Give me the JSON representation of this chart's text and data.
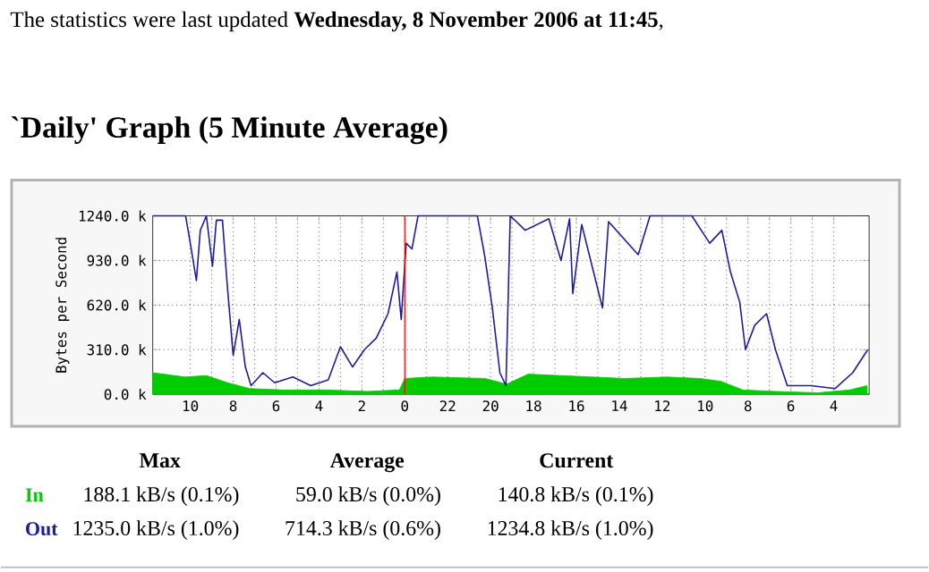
{
  "chart_data": {
    "type": "line",
    "title": "`Daily' Graph (5 Minute Average)",
    "subtitle": "The statistics were last updated **Wednesday, 8 November 2006 at 11:45**,",
    "ylabel": "Bytes per Second",
    "xlim": [
      "2006-11-08T11:45",
      "2006-11-07T02:21"
    ],
    "xticks": [
      {
        "value": "2006-11-08T10:00",
        "label": "10"
      },
      {
        "value": "2006-11-08T08:00",
        "label": "8"
      },
      {
        "value": "2006-11-08T06:00",
        "label": "6"
      },
      {
        "value": "2006-11-08T04:00",
        "label": "4"
      },
      {
        "value": "2006-11-08T02:00",
        "label": "2"
      },
      {
        "value": "2006-11-08T00:00",
        "label": "0"
      },
      {
        "value": "2006-11-07T22:00",
        "label": "22"
      },
      {
        "value": "2006-11-07T20:00",
        "label": "20"
      },
      {
        "value": "2006-11-07T18:00",
        "label": "18"
      },
      {
        "value": "2006-11-07T16:00",
        "label": "16"
      },
      {
        "value": "2006-11-07T14:00",
        "label": "14"
      },
      {
        "value": "2006-11-07T12:00",
        "label": "12"
      },
      {
        "value": "2006-11-07T10:00",
        "label": "10"
      },
      {
        "value": "2006-11-07T08:00",
        "label": "8"
      },
      {
        "value": "2006-11-07T06:00",
        "label": "6"
      },
      {
        "value": "2006-11-07T04:00",
        "label": "4"
      }
    ],
    "ylim": [
      0,
      1240
    ],
    "yticks": [
      {
        "value": 0,
        "label": "0.0 k"
      },
      {
        "value": 310,
        "label": "310.0 k"
      },
      {
        "value": 620,
        "label": "620.0 k"
      },
      {
        "value": 930,
        "label": "930.0 k"
      },
      {
        "value": 1240,
        "label": "1240.0 k"
      }
    ],
    "grid": true,
    "series": [
      {
        "name": "In",
        "type": "area",
        "color": "#00cc00",
        "x": [
          "2006-11-08T11:45",
          "2006-11-08T10:15",
          "2006-11-08T09:15",
          "2006-11-08T08:15",
          "2006-11-08T07:15",
          "2006-11-08T05:45",
          "2006-11-08T03:45",
          "2006-11-08T01:45",
          "2006-11-08T00:15",
          "2006-11-08T00:00",
          "2006-11-07T22:45",
          "2006-11-07T20:15",
          "2006-11-07T19:15",
          "2006-11-07T18:15",
          "2006-11-07T16:45",
          "2006-11-07T15:15",
          "2006-11-07T13:45",
          "2006-11-07T11:45",
          "2006-11-07T10:15",
          "2006-11-07T09:15",
          "2006-11-07T08:15",
          "2006-11-07T06:45",
          "2006-11-07T04:45",
          "2006-11-07T03:15",
          "2006-11-07T02:27"
        ],
        "values": [
          150,
          120,
          130,
          80,
          40,
          30,
          30,
          20,
          30,
          110,
          120,
          110,
          70,
          140,
          130,
          120,
          110,
          120,
          110,
          90,
          30,
          20,
          10,
          30,
          60
        ]
      },
      {
        "name": "Out",
        "color": "#1c1ca0",
        "x": [
          "2006-11-08T11:45",
          "2006-11-08T10:13",
          "2006-11-08T10:00",
          "2006-11-08T09:43",
          "2006-11-08T09:32",
          "2006-11-08T09:15",
          "2006-11-08T08:58",
          "2006-11-08T08:47",
          "2006-11-08T08:30",
          "2006-11-08T08:17",
          "2006-11-08T08:00",
          "2006-11-08T07:43",
          "2006-11-08T07:26",
          "2006-11-08T07:10",
          "2006-11-08T06:37",
          "2006-11-08T06:04",
          "2006-11-08T05:13",
          "2006-11-08T04:23",
          "2006-11-08T03:34",
          "2006-11-08T03:00",
          "2006-11-08T02:26",
          "2006-11-08T01:53",
          "2006-11-08T01:20",
          "2006-11-08T00:47",
          "2006-11-08T00:22",
          "2006-11-08T00:10",
          "2006-11-07T23:56",
          "2006-11-07T23:40",
          "2006-11-07T23:23",
          "2006-11-07T20:37",
          "2006-11-07T20:17",
          "2006-11-07T19:55",
          "2006-11-07T19:34",
          "2006-11-07T19:17",
          "2006-11-07T19:05",
          "2006-11-07T18:23",
          "2006-11-07T17:17",
          "2006-11-07T16:43",
          "2006-11-07T16:19",
          "2006-11-07T16:10",
          "2006-11-07T15:45",
          "2006-11-07T14:47",
          "2006-11-07T14:30",
          "2006-11-07T13:07",
          "2006-11-07T12:34",
          "2006-11-07T10:37",
          "2006-11-07T09:47",
          "2006-11-07T09:13",
          "2006-11-07T08:49",
          "2006-11-07T08:23",
          "2006-11-07T08:07",
          "2006-11-07T07:41",
          "2006-11-07T07:08",
          "2006-11-07T06:43",
          "2006-11-07T06:10",
          "2006-11-07T05:04",
          "2006-11-07T03:56",
          "2006-11-07T03:07",
          "2006-11-07T02:25"
        ],
        "values": [
          1240,
          1240,
          1050,
          790,
          1140,
          1240,
          890,
          1210,
          1210,
          770,
          270,
          520,
          190,
          60,
          150,
          80,
          120,
          60,
          100,
          330,
          190,
          310,
          390,
          560,
          850,
          520,
          1050,
          1010,
          1240,
          1240,
          970,
          600,
          150,
          60,
          1240,
          1140,
          1220,
          930,
          1220,
          700,
          1180,
          600,
          1200,
          970,
          1240,
          1240,
          1050,
          1140,
          850,
          640,
          310,
          480,
          560,
          310,
          60,
          60,
          40,
          150,
          310
        ]
      }
    ],
    "ref_lines": [
      {
        "axis": "x",
        "value": "2006-11-08T00:00",
        "color": "#ff0000"
      }
    ],
    "annotations": [
      "Max",
      "Average",
      "Current",
      "188.1 kB/s (0.1%)",
      "59.0 kB/s (0.0%)",
      "140.8 kB/s (0.1%)",
      "1235.0 kB/s (1.0%)",
      "714.3 kB/s (0.6%)",
      "1234.8 kB/s (1.0%)"
    ]
  }
}
